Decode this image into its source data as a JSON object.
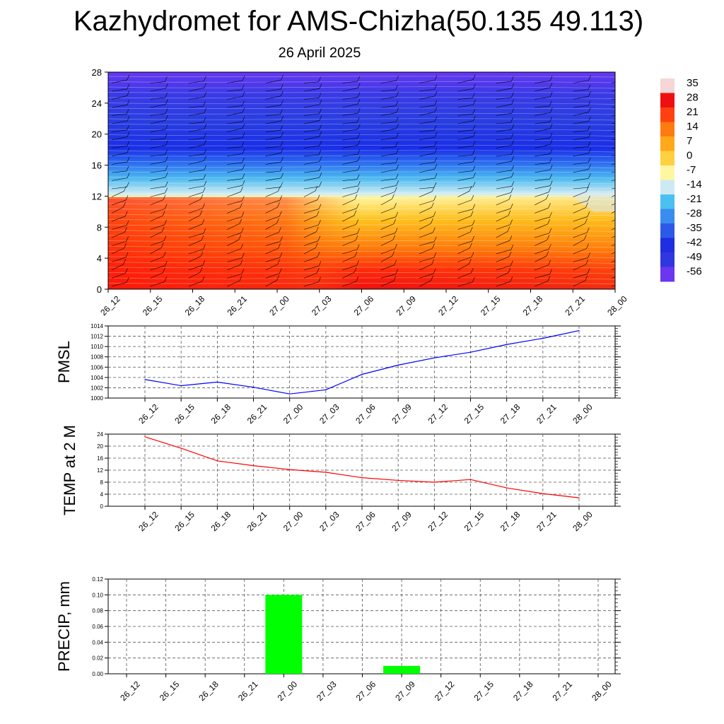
{
  "title": "Kazhydromet for AMS-Chizha(50.135 49.113)",
  "subtitle": "26 April 2025",
  "time_labels": [
    "26_12",
    "26_15",
    "26_18",
    "26_21",
    "27_00",
    "27_03",
    "27_06",
    "27_09",
    "27_12",
    "27_15",
    "27_18",
    "27_21",
    "28_00"
  ],
  "chart_data": [
    {
      "type": "heatmap",
      "title": "",
      "yticks": [
        0,
        4,
        8,
        12,
        16,
        20,
        24,
        28
      ],
      "ylim": [
        0,
        28
      ],
      "categories": [
        "26_12",
        "26_15",
        "26_18",
        "26_21",
        "27_00",
        "27_03",
        "27_06",
        "27_09",
        "27_12",
        "27_15",
        "27_18",
        "27_21",
        "28_00"
      ],
      "colorbar_labels": [
        35,
        28,
        21,
        14,
        7,
        0,
        -7,
        -14,
        -21,
        -28,
        -35,
        -42,
        -49,
        -56
      ],
      "colors": {
        "warm": "#ee1c1c",
        "mid": "#fff27a",
        "cold": "#2f2ae0"
      }
    },
    {
      "type": "line",
      "ylabel": "PMSL",
      "ylim": [
        1000,
        1014
      ],
      "yticks": [
        1000,
        1002,
        1004,
        1006,
        1008,
        1010,
        1012,
        1014
      ],
      "categories": [
        "26_12",
        "26_15",
        "26_18",
        "26_21",
        "27_00",
        "27_03",
        "27_06",
        "27_09",
        "27_12",
        "27_15",
        "27_18",
        "27_21",
        "28_00"
      ],
      "values": [
        1003.6,
        1002.4,
        1003.1,
        1002.1,
        1000.8,
        1001.6,
        1004.6,
        1006.4,
        1007.8,
        1008.9,
        1010.4,
        1011.6,
        1013.1
      ],
      "color": "#0000ff",
      "grid": true
    },
    {
      "type": "line",
      "ylabel": "TEMP at 2 M",
      "ylim": [
        0,
        24
      ],
      "yticks": [
        0,
        4,
        8,
        12,
        16,
        20,
        24
      ],
      "categories": [
        "26_12",
        "26_15",
        "26_18",
        "26_21",
        "27_00",
        "27_03",
        "27_06",
        "27_09",
        "27_12",
        "27_15",
        "27_18",
        "27_21",
        "28_00"
      ],
      "values": [
        23.1,
        19.3,
        15.1,
        13.5,
        12.2,
        11.3,
        9.5,
        8.6,
        8.0,
        8.9,
        6.1,
        4.2,
        2.8
      ],
      "color": "#ff0000",
      "grid": true
    },
    {
      "type": "bar",
      "ylabel": "PRECIP, mm",
      "ylim": [
        0,
        0.12
      ],
      "yticks": [
        "0.00",
        "0.02",
        "0.04",
        "0.06",
        "0.08",
        "0.10",
        "0.12"
      ],
      "categories": [
        "26_12",
        "26_15",
        "26_18",
        "26_21",
        "27_00",
        "27_03",
        "27_06",
        "27_09",
        "27_12",
        "27_15",
        "27_18",
        "27_21",
        "28_00"
      ],
      "values": [
        0,
        0,
        0,
        0,
        0.1,
        0,
        0,
        0.01,
        0,
        0,
        0,
        0,
        0
      ],
      "color": "#00ff00",
      "grid": true
    }
  ]
}
